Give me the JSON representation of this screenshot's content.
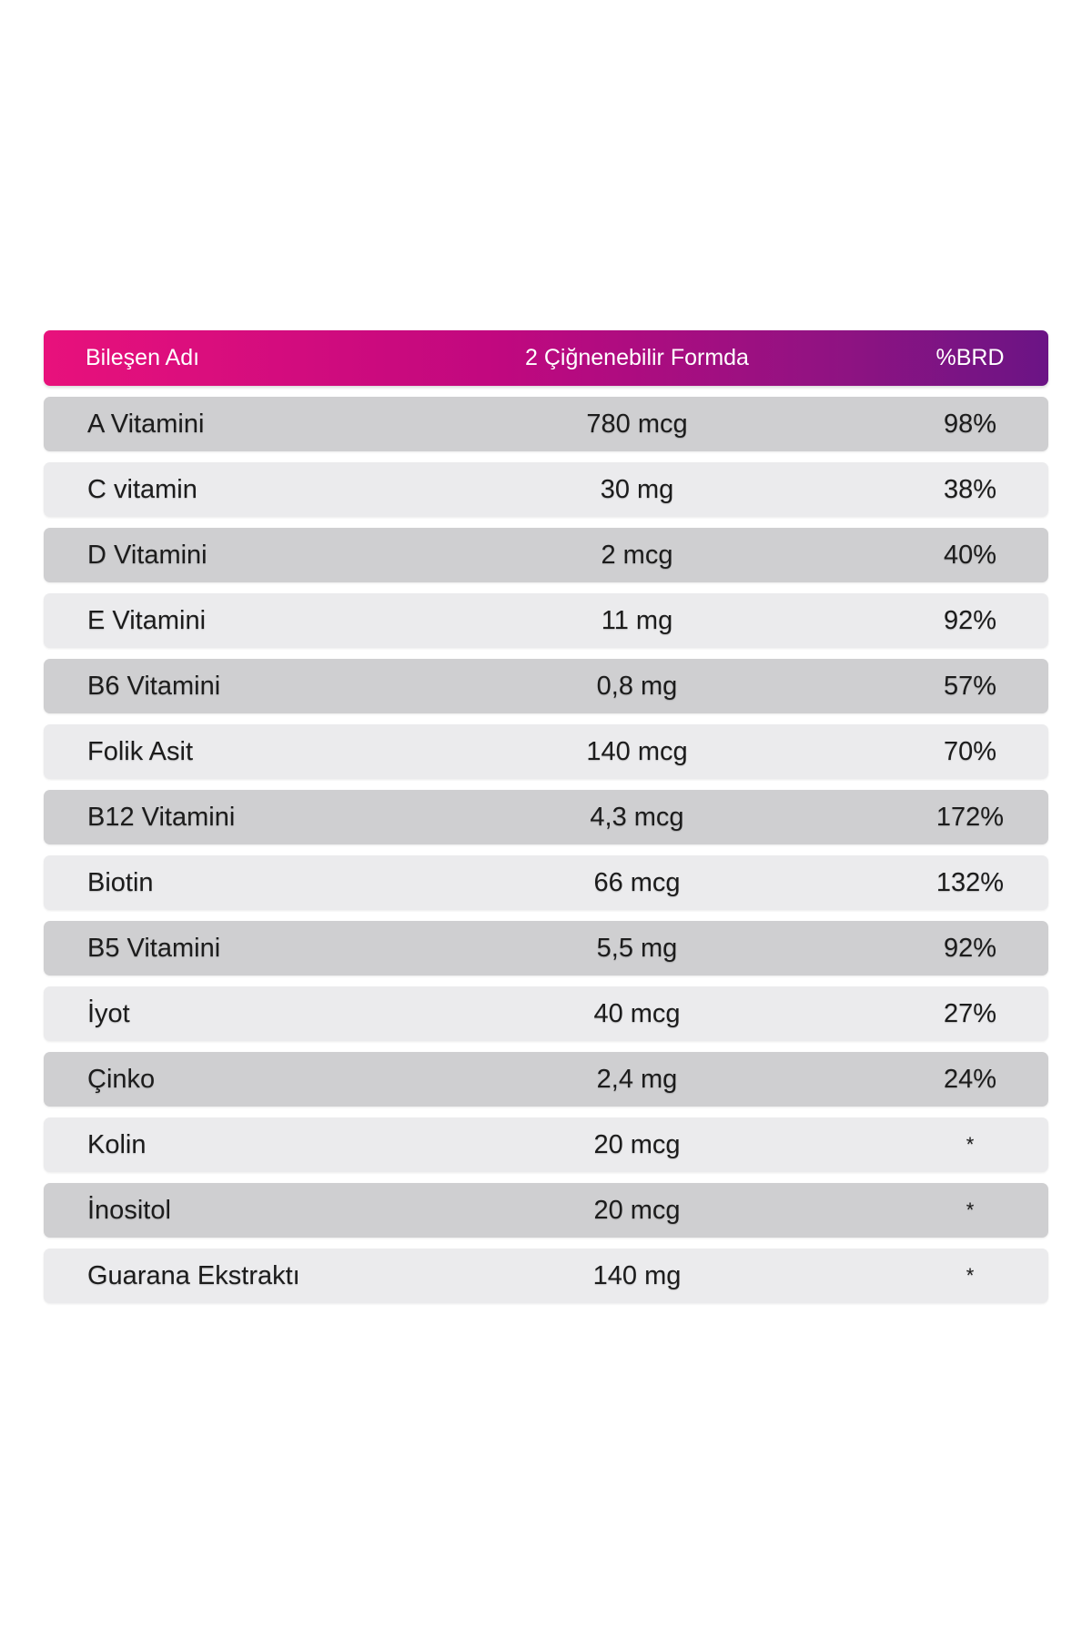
{
  "header": {
    "name_label": "Bileşen Adı",
    "amount_label": "2 Çiğnenebilir Formda",
    "pct_label": "%BRD",
    "gradient_colors": [
      "#e8117c",
      "#6b1485"
    ]
  },
  "rows": [
    {
      "name": "A Vitamini",
      "amount": "780 mcg",
      "pct": "98%"
    },
    {
      "name": "C vitamin",
      "amount": "30 mg",
      "pct": "38%"
    },
    {
      "name": "D Vitamini",
      "amount": "2 mcg",
      "pct": "40%"
    },
    {
      "name": "E Vitamini",
      "amount": "11 mg",
      "pct": "92%"
    },
    {
      "name": "B6 Vitamini",
      "amount": "0,8 mg",
      "pct": "57%"
    },
    {
      "name": "Folik Asit",
      "amount": "140 mcg",
      "pct": "70%"
    },
    {
      "name": "B12 Vitamini",
      "amount": "4,3 mcg",
      "pct": "172%"
    },
    {
      "name": "Biotin",
      "amount": "66 mcg",
      "pct": "132%"
    },
    {
      "name": "B5 Vitamini",
      "amount": "5,5 mg",
      "pct": "92%"
    },
    {
      "name": "İyot",
      "amount": "40 mcg",
      "pct": "27%"
    },
    {
      "name": "Çinko",
      "amount": "2,4 mg",
      "pct": "24%"
    },
    {
      "name": "Kolin",
      "amount": "20 mcg",
      "pct": "*"
    },
    {
      "name": "İnositol",
      "amount": "20 mcg",
      "pct": "*"
    },
    {
      "name": "Guarana Ekstraktı",
      "amount": "140 mg",
      "pct": "*"
    }
  ],
  "row_colors": {
    "dark": "#cfcfd1",
    "light": "#ebebed"
  }
}
